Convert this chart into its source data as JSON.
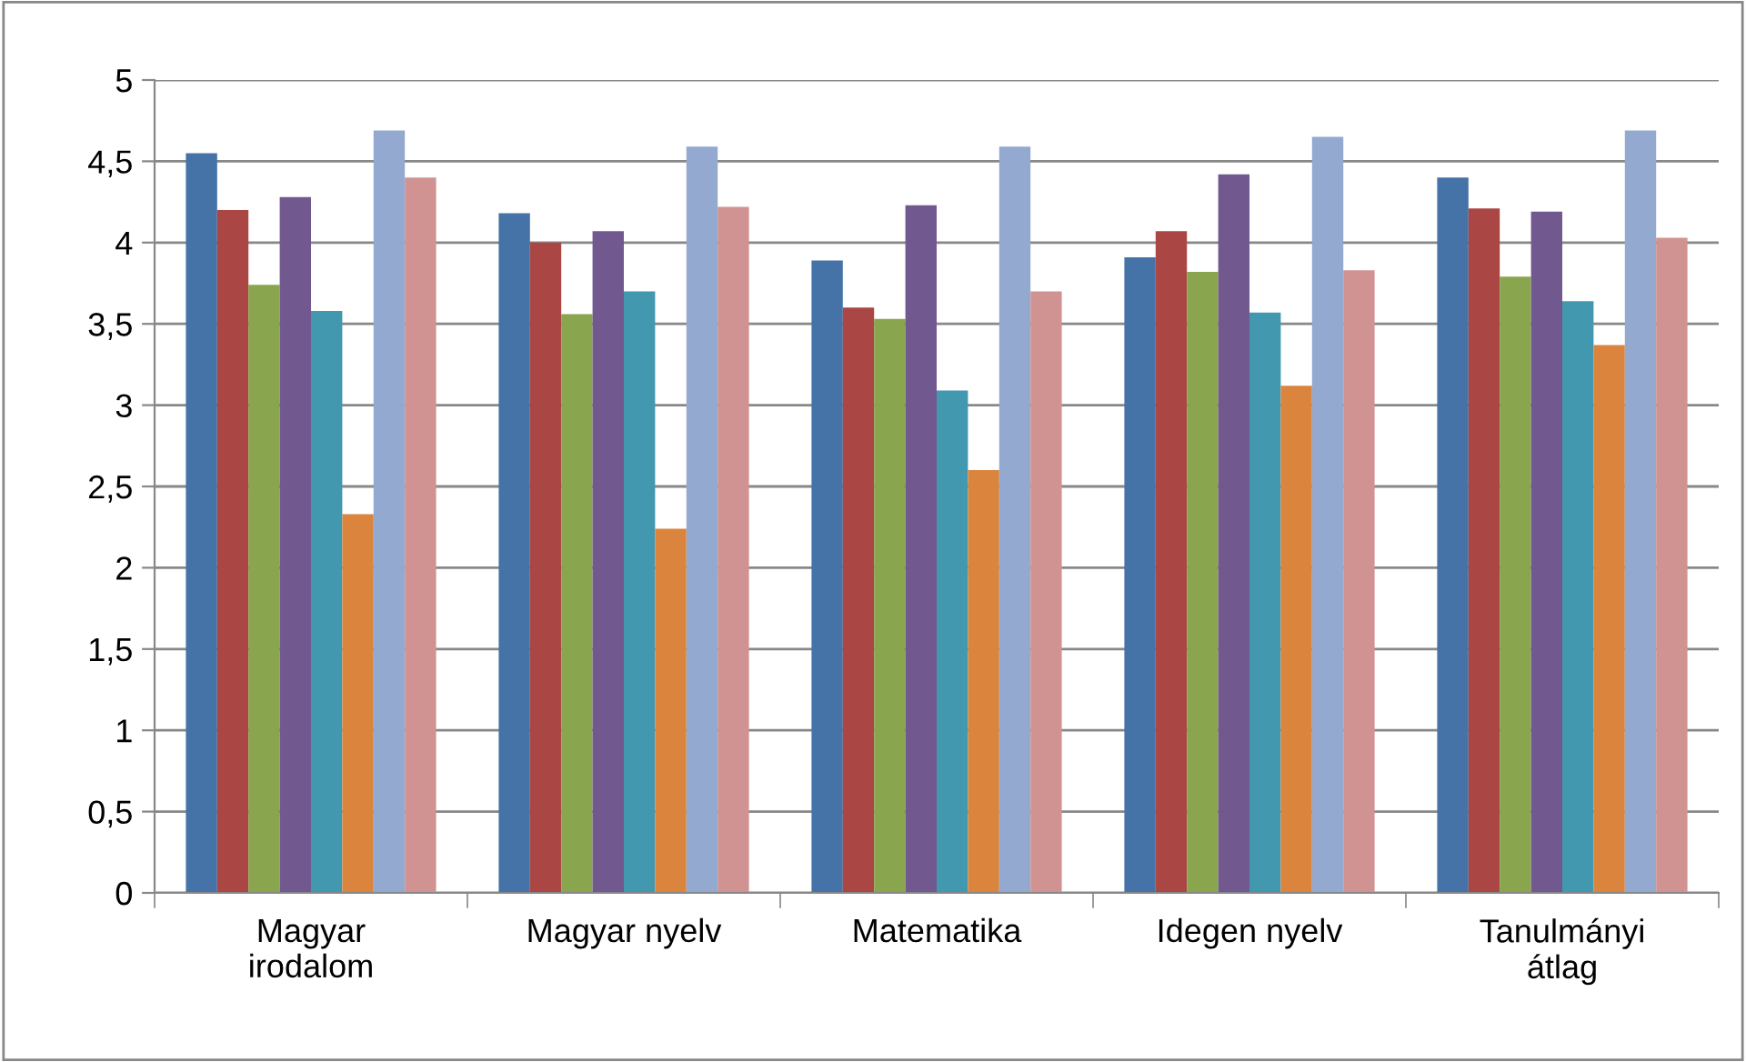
{
  "chart_data": {
    "type": "bar",
    "categories": [
      "Magyar\nirodalom",
      "Magyar nyelv",
      "Matematika",
      "Idegen nyelv",
      "Tanulmányi\nátlag"
    ],
    "series": [
      {
        "color": "#4572a7",
        "values": [
          4.55,
          4.18,
          3.89,
          3.91,
          4.4
        ]
      },
      {
        "color": "#aa4643",
        "values": [
          4.2,
          4.0,
          3.6,
          4.07,
          4.21
        ]
      },
      {
        "color": "#89a54e",
        "values": [
          3.74,
          3.56,
          3.53,
          3.82,
          3.79
        ]
      },
      {
        "color": "#71588f",
        "values": [
          4.28,
          4.07,
          4.23,
          4.42,
          4.19
        ]
      },
      {
        "color": "#4198af",
        "values": [
          3.58,
          3.7,
          3.09,
          3.57,
          3.64
        ]
      },
      {
        "color": "#db843d",
        "values": [
          2.33,
          2.24,
          2.6,
          3.12,
          3.37
        ]
      },
      {
        "color": "#93a9cf",
        "values": [
          4.69,
          4.59,
          4.59,
          4.65,
          4.69
        ]
      },
      {
        "color": "#d19392",
        "values": [
          4.4,
          4.22,
          3.7,
          3.83,
          4.03
        ]
      }
    ],
    "ylim": [
      0,
      5
    ],
    "yticks": [
      0,
      {
        "value": 0.5,
        "label": "0,5"
      },
      1,
      {
        "value": 1.5,
        "label": "1,5"
      },
      2,
      {
        "value": 2.5,
        "label": "2,5"
      },
      3,
      {
        "value": 3.5,
        "label": "3,5"
      },
      4,
      {
        "value": 4.5,
        "label": "4,5"
      },
      5
    ],
    "grid": "y"
  }
}
